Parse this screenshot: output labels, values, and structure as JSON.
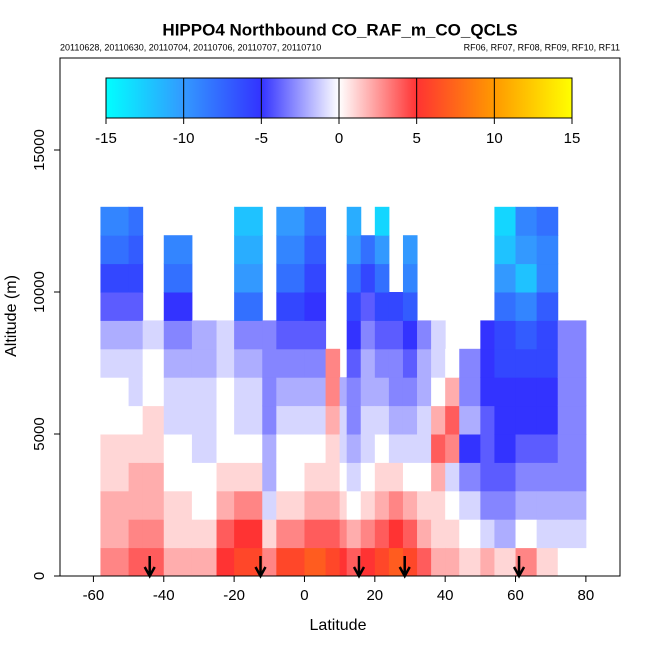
{
  "chart_data": {
    "type": "heatmap",
    "title": "HIPPO4 Northbound CO_RAF_m_CO_QCLS",
    "subtitle_left": "20110628, 20110630, 20110704, 20110706, 20110707, 20110710",
    "subtitle_right": "RF06, RF07, RF08, RF09, RF10, RF11",
    "x_label": "Latitude",
    "y_label": "Altitude (m)",
    "xlim": [
      -69.5,
      89.7
    ],
    "ylim": [
      0,
      18240
    ],
    "xticks": [
      -60,
      -40,
      -20,
      0,
      20,
      40,
      60,
      80
    ],
    "yticks": [
      0,
      5000,
      10000,
      15000
    ],
    "x_edges": [
      -58,
      -50,
      -46,
      -40,
      -32,
      -25,
      -20,
      -12,
      -8,
      0,
      6,
      10,
      12,
      16,
      20,
      24,
      28,
      32,
      36,
      40,
      44,
      50,
      54,
      60,
      66,
      72,
      80
    ],
    "y_edges": [
      0,
      1000,
      2000,
      3000,
      4000,
      5000,
      6000,
      7000,
      8000,
      9000,
      10000,
      11000,
      12000,
      13000
    ],
    "values": [
      [
        3,
        2,
        2,
        1,
        1,
        0,
        0,
        -1,
        -2,
        -4,
        -6,
        -8,
        -9
      ],
      [
        4,
        3,
        2,
        2,
        1,
        0,
        -1,
        -1,
        -2,
        -4,
        -6,
        -7,
        -8
      ],
      [
        4,
        3,
        2,
        2,
        1,
        1,
        0,
        0,
        -1,
        null,
        null,
        null,
        null
      ],
      [
        2,
        1,
        1,
        0,
        0,
        -1,
        -1,
        -2,
        -3,
        -5,
        -8,
        -9,
        null
      ],
      [
        2,
        1,
        0,
        0,
        -1,
        -1,
        -1,
        -2,
        -2,
        null,
        null,
        null,
        null
      ],
      [
        5,
        4,
        2,
        1,
        0,
        0,
        0,
        -1,
        -1,
        null,
        null,
        null,
        null
      ],
      [
        6,
        5,
        3,
        1,
        0,
        -1,
        -1,
        -2,
        -3,
        -8,
        -10,
        -11,
        -12
      ],
      [
        3,
        1,
        -1,
        -2,
        -2,
        -3,
        -3,
        -3,
        -3,
        null,
        null,
        null,
        null
      ],
      [
        6,
        3,
        1,
        0,
        0,
        -1,
        -2,
        -3,
        -4,
        -6,
        -8,
        -9,
        -10
      ],
      [
        7,
        4,
        2,
        1,
        0,
        -1,
        -2,
        -3,
        -4,
        -5,
        -6,
        -7,
        -8
      ],
      [
        6,
        4,
        2,
        1,
        1,
        2,
        3,
        3,
        null,
        null,
        null,
        null,
        null
      ],
      [
        5,
        3,
        1,
        0,
        -1,
        -1,
        -2,
        null,
        null,
        null,
        null,
        null,
        null
      ],
      [
        4,
        2,
        0,
        -1,
        -2,
        -3,
        -3,
        -4,
        -5,
        -6,
        -8,
        -10,
        -11
      ],
      [
        5,
        3,
        1,
        0,
        -1,
        -1,
        -2,
        -2,
        -3,
        -4,
        -6,
        -8,
        null
      ],
      [
        6,
        4,
        2,
        1,
        0,
        -1,
        -2,
        -3,
        -4,
        -6,
        -8,
        -10,
        -13
      ],
      [
        7,
        5,
        3,
        1,
        -1,
        -2,
        -3,
        -3,
        -4,
        -6,
        null,
        null,
        null
      ],
      [
        6,
        4,
        2,
        0,
        -1,
        -2,
        -3,
        -4,
        -5,
        -7,
        -9,
        -10,
        null
      ],
      [
        4,
        2,
        1,
        0,
        -1,
        -1,
        -2,
        -2,
        -3,
        null,
        null,
        null,
        null
      ],
      [
        2,
        1,
        1,
        2,
        4,
        2,
        0,
        -1,
        -1,
        null,
        null,
        null,
        null
      ],
      [
        2,
        1,
        0,
        -1,
        3,
        4,
        2,
        0,
        null,
        null,
        null,
        null,
        null
      ],
      [
        1,
        0,
        -1,
        -3,
        -5,
        -2,
        -3,
        -3,
        null,
        null,
        null,
        null,
        null
      ],
      [
        2,
        -1,
        -3,
        -4,
        -4,
        -4,
        -5,
        -5,
        -5,
        null,
        null,
        null,
        null
      ],
      [
        1,
        -2,
        -3,
        -4,
        -5,
        -5,
        -5,
        -6,
        -6,
        -8,
        -10,
        -12,
        -13
      ],
      [
        3,
        0,
        -2,
        -3,
        -4,
        -5,
        -5,
        -6,
        -7,
        -9,
        -12,
        -10,
        -9
      ],
      [
        1,
        -1,
        -2,
        -3,
        -4,
        -5,
        -5,
        -6,
        -6,
        -7,
        -9,
        -9,
        -8
      ],
      [
        0,
        -1,
        -2,
        -3,
        -3,
        -3,
        -3,
        -3,
        -3,
        null,
        null,
        null,
        null
      ]
    ],
    "colorbar_ticks": [
      -15,
      -10,
      -5,
      0,
      5,
      10,
      15
    ],
    "colorbar_colors": [
      "#00ffff",
      "#3399ff",
      "#3333ff",
      "#ffffff",
      "#ff3333",
      "#ff9900",
      "#ffff00"
    ],
    "arrows": [
      -44,
      -12.5,
      15.5,
      28.5,
      61
    ]
  }
}
